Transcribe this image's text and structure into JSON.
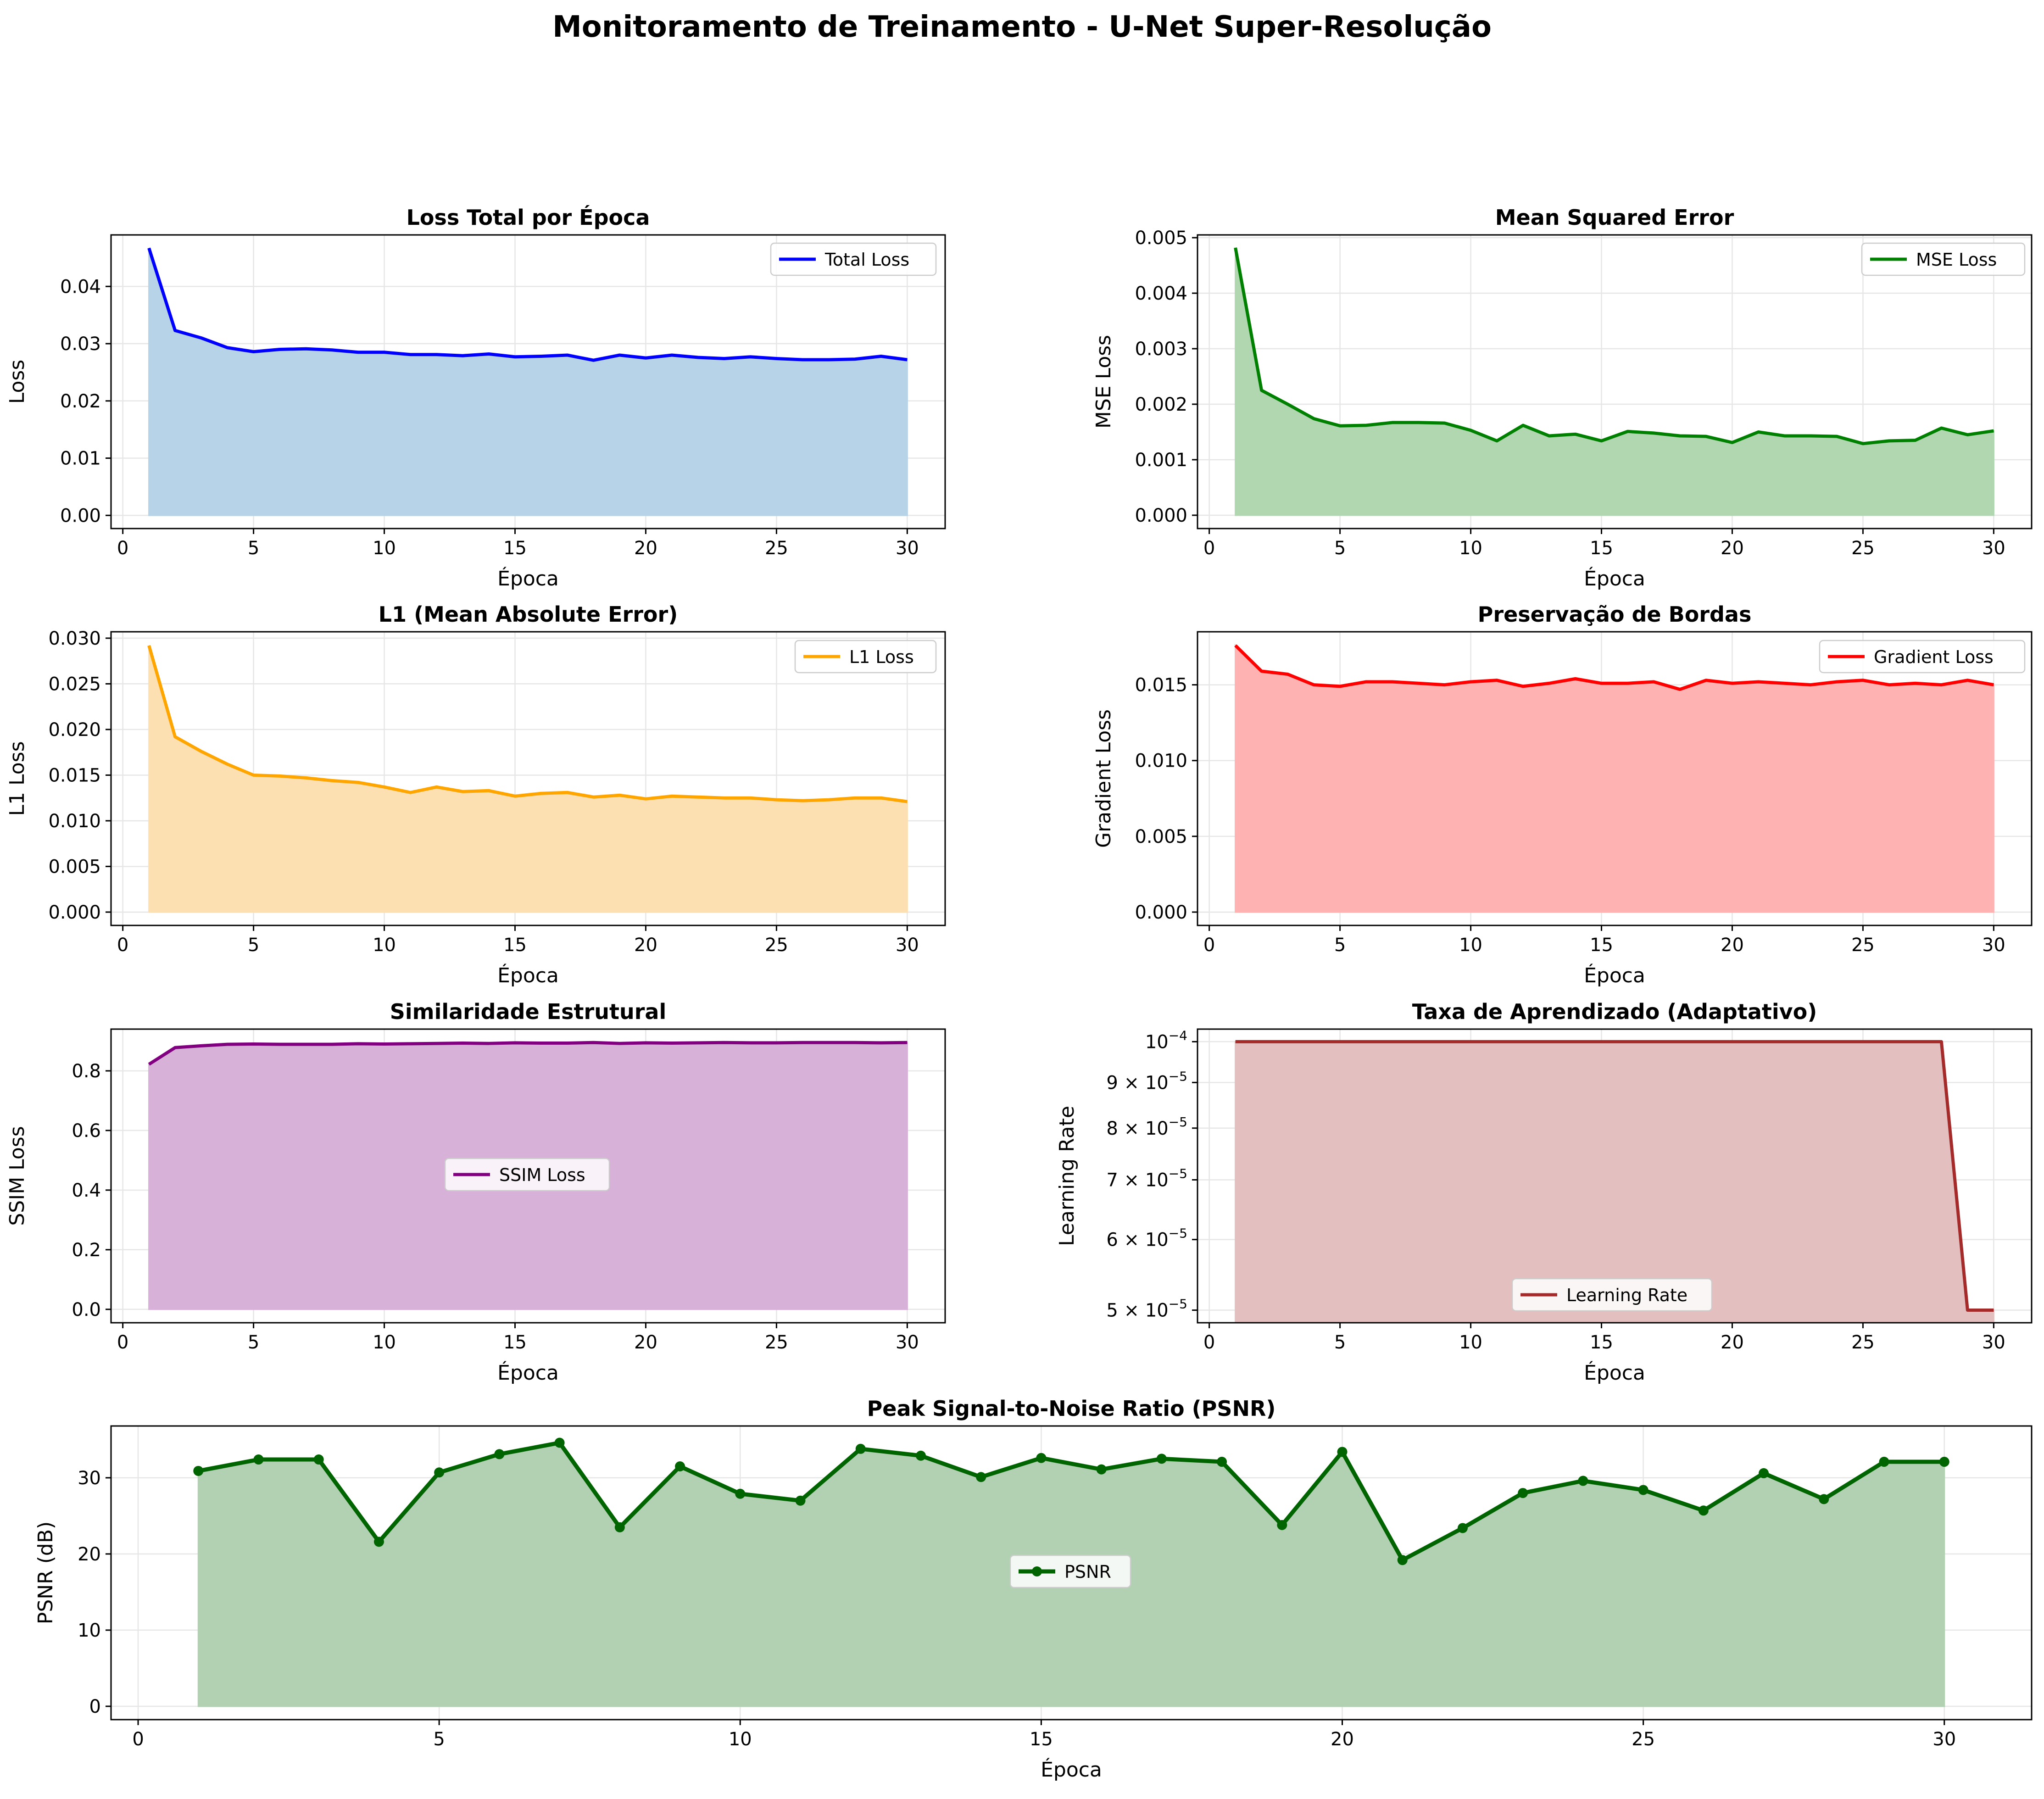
{
  "figure": {
    "title": "Monitoramento de Treinamento - U-Net Super-Resolução"
  },
  "chart_data": [
    {
      "id": "total",
      "type": "area",
      "title": "Loss Total por Época",
      "xlabel": "Época",
      "ylabel": "Loss",
      "xlim": [
        -0.45,
        31.45
      ],
      "ylim": [
        -0.0023,
        0.049
      ],
      "xticks": [
        0,
        5,
        10,
        15,
        20,
        25,
        30
      ],
      "yticks": [
        0.0,
        0.01,
        0.02,
        0.03,
        0.04
      ],
      "ytick_labels": [
        "0.00",
        "0.01",
        "0.02",
        "0.03",
        "0.04"
      ],
      "grid": true,
      "legend_position": "upper right",
      "color": "#0000ff",
      "fill_color": "#b7d3e7",
      "series": [
        {
          "name": "Total Loss",
          "x": [
            1,
            2,
            3,
            4,
            5,
            6,
            7,
            8,
            9,
            10,
            11,
            12,
            13,
            14,
            15,
            16,
            17,
            18,
            19,
            20,
            21,
            22,
            23,
            24,
            25,
            26,
            27,
            28,
            29,
            30
          ],
          "values": [
            0.0467,
            0.0323,
            0.031,
            0.0293,
            0.0286,
            0.029,
            0.0291,
            0.0289,
            0.0285,
            0.0285,
            0.0281,
            0.0281,
            0.0279,
            0.0282,
            0.0277,
            0.0278,
            0.028,
            0.0271,
            0.028,
            0.0275,
            0.028,
            0.0276,
            0.0274,
            0.0277,
            0.0274,
            0.0272,
            0.0272,
            0.0273,
            0.0278,
            0.0272
          ]
        }
      ]
    },
    {
      "id": "mse",
      "type": "area",
      "title": "Mean Squared Error",
      "xlabel": "Época",
      "ylabel": "MSE Loss",
      "xlim": [
        -0.45,
        31.45
      ],
      "ylim": [
        -0.00024,
        0.00505
      ],
      "xticks": [
        0,
        5,
        10,
        15,
        20,
        25,
        30
      ],
      "yticks": [
        0.0,
        0.001,
        0.002,
        0.003,
        0.004,
        0.005
      ],
      "ytick_labels": [
        "0.000",
        "0.001",
        "0.002",
        "0.003",
        "0.004",
        "0.005"
      ],
      "grid": true,
      "legend_position": "upper right",
      "color": "#008000",
      "fill_color": "#b1d7b1",
      "series": [
        {
          "name": "MSE Loss",
          "x": [
            1,
            2,
            3,
            4,
            5,
            6,
            7,
            8,
            9,
            10,
            11,
            12,
            13,
            14,
            15,
            16,
            17,
            18,
            19,
            20,
            21,
            22,
            23,
            24,
            25,
            26,
            27,
            28,
            29,
            30
          ],
          "values": [
            0.00482,
            0.00225,
            0.002,
            0.00174,
            0.00161,
            0.00162,
            0.00167,
            0.00167,
            0.00166,
            0.00153,
            0.00134,
            0.00162,
            0.00143,
            0.00146,
            0.00134,
            0.00151,
            0.00148,
            0.00143,
            0.00142,
            0.00131,
            0.0015,
            0.00143,
            0.00143,
            0.00142,
            0.00129,
            0.00134,
            0.00135,
            0.00157,
            0.00145,
            0.00152
          ]
        }
      ]
    },
    {
      "id": "l1",
      "type": "area",
      "title": "L1 (Mean Absolute Error)",
      "xlabel": "Época",
      "ylabel": "L1 Loss",
      "xlim": [
        -0.45,
        31.45
      ],
      "ylim": [
        -0.00146,
        0.0307
      ],
      "xticks": [
        0,
        5,
        10,
        15,
        20,
        25,
        30
      ],
      "yticks": [
        0.0,
        0.005,
        0.01,
        0.015,
        0.02,
        0.025,
        0.03
      ],
      "ytick_labels": [
        "0.000",
        "0.005",
        "0.010",
        "0.015",
        "0.020",
        "0.025",
        "0.030"
      ],
      "grid": true,
      "legend_position": "upper right",
      "color": "#ffa500",
      "fill_color": "#fde0b2",
      "series": [
        {
          "name": "L1 Loss",
          "x": [
            1,
            2,
            3,
            4,
            5,
            6,
            7,
            8,
            9,
            10,
            11,
            12,
            13,
            14,
            15,
            16,
            17,
            18,
            19,
            20,
            21,
            22,
            23,
            24,
            25,
            26,
            27,
            28,
            29,
            30
          ],
          "values": [
            0.0292,
            0.0192,
            0.0176,
            0.0162,
            0.015,
            0.0149,
            0.0147,
            0.0144,
            0.0142,
            0.0137,
            0.0131,
            0.0137,
            0.0132,
            0.0133,
            0.0127,
            0.013,
            0.0131,
            0.0126,
            0.0128,
            0.0124,
            0.0127,
            0.0126,
            0.0125,
            0.0125,
            0.0123,
            0.0122,
            0.0123,
            0.0125,
            0.0125,
            0.0121
          ]
        }
      ]
    },
    {
      "id": "grad",
      "type": "area",
      "title": "Preservação de Bordas",
      "xlabel": "Época",
      "ylabel": "Gradient Loss",
      "xlim": [
        -0.45,
        31.45
      ],
      "ylim": [
        -0.00088,
        0.0185
      ],
      "xticks": [
        0,
        5,
        10,
        15,
        20,
        25,
        30
      ],
      "yticks": [
        0.0,
        0.005,
        0.01,
        0.015
      ],
      "ytick_labels": [
        "0.000",
        "0.005",
        "0.010",
        "0.015"
      ],
      "grid": true,
      "legend_position": "upper right",
      "color": "#ff0000",
      "fill_color": "#ffb2b2",
      "series": [
        {
          "name": "Gradient Loss",
          "x": [
            1,
            2,
            3,
            4,
            5,
            6,
            7,
            8,
            9,
            10,
            11,
            12,
            13,
            14,
            15,
            16,
            17,
            18,
            19,
            20,
            21,
            22,
            23,
            24,
            25,
            26,
            27,
            28,
            29,
            30
          ],
          "values": [
            0.0176,
            0.0159,
            0.0157,
            0.015,
            0.0149,
            0.0152,
            0.0152,
            0.0151,
            0.015,
            0.0152,
            0.0153,
            0.0149,
            0.0151,
            0.0154,
            0.0151,
            0.0151,
            0.0152,
            0.0147,
            0.0153,
            0.0151,
            0.0152,
            0.0151,
            0.015,
            0.0152,
            0.0153,
            0.015,
            0.0151,
            0.015,
            0.0153,
            0.015
          ]
        }
      ]
    },
    {
      "id": "ssim",
      "type": "area",
      "title": "Similaridade Estrutural",
      "xlabel": "Época",
      "ylabel": "SSIM Loss",
      "xlim": [
        -0.45,
        31.45
      ],
      "ylim": [
        -0.045,
        0.94
      ],
      "xticks": [
        0,
        5,
        10,
        15,
        20,
        25,
        30
      ],
      "yticks": [
        0.0,
        0.2,
        0.4,
        0.6,
        0.8
      ],
      "ytick_labels": [
        "0.0",
        "0.2",
        "0.4",
        "0.6",
        "0.8"
      ],
      "grid": true,
      "legend_position": "center",
      "color": "#800080",
      "fill_color": "#d8b1d8",
      "series": [
        {
          "name": "SSIM Loss",
          "x": [
            1,
            2,
            3,
            4,
            5,
            6,
            7,
            8,
            9,
            10,
            11,
            12,
            13,
            14,
            15,
            16,
            17,
            18,
            19,
            20,
            21,
            22,
            23,
            24,
            25,
            26,
            27,
            28,
            29,
            30
          ],
          "values": [
            0.822,
            0.878,
            0.884,
            0.889,
            0.89,
            0.889,
            0.889,
            0.889,
            0.891,
            0.89,
            0.891,
            0.892,
            0.893,
            0.892,
            0.894,
            0.893,
            0.893,
            0.895,
            0.892,
            0.894,
            0.893,
            0.894,
            0.895,
            0.894,
            0.894,
            0.895,
            0.895,
            0.895,
            0.894,
            0.895
          ]
        }
      ]
    },
    {
      "id": "lr",
      "type": "area",
      "title": "Taxa de Aprendizado (Adaptativo)",
      "xlabel": "Época",
      "ylabel": "Learning Rate",
      "yscale": "log",
      "xlim": [
        -0.45,
        31.45
      ],
      "ylim": [
        4.84e-05,
        0.0001033
      ],
      "xticks": [
        0,
        5,
        10,
        15,
        20,
        25,
        30
      ],
      "yticks": [
        0.0001,
        9e-05,
        8e-05,
        7e-05,
        6e-05,
        5e-05
      ],
      "ytick_labels": [
        [
          "10",
          "−4"
        ],
        [
          "9 × 10",
          "−5"
        ],
        [
          "8 × 10",
          "−5"
        ],
        [
          "7 × 10",
          "−5"
        ],
        [
          "6 × 10",
          "−5"
        ],
        [
          "5 × 10",
          "−5"
        ]
      ],
      "grid": true,
      "legend_position": "lower center",
      "color": "#a52a2a",
      "fill_color": "#e4bfbf",
      "series": [
        {
          "name": "Learning Rate",
          "x": [
            1,
            2,
            3,
            4,
            5,
            6,
            7,
            8,
            9,
            10,
            11,
            12,
            13,
            14,
            15,
            16,
            17,
            18,
            19,
            20,
            21,
            22,
            23,
            24,
            25,
            26,
            27,
            28,
            29,
            30
          ],
          "values": [
            0.0001,
            0.0001,
            0.0001,
            0.0001,
            0.0001,
            0.0001,
            0.0001,
            0.0001,
            0.0001,
            0.0001,
            0.0001,
            0.0001,
            0.0001,
            0.0001,
            0.0001,
            0.0001,
            0.0001,
            0.0001,
            0.0001,
            0.0001,
            0.0001,
            0.0001,
            0.0001,
            0.0001,
            0.0001,
            0.0001,
            0.0001,
            0.0001,
            5e-05,
            5e-05
          ]
        }
      ]
    },
    {
      "id": "psnr",
      "type": "area",
      "title": "Peak Signal-to-Noise Ratio (PSNR)",
      "xlabel": "Época",
      "ylabel": "PSNR (dB)",
      "xlim": [
        -0.45,
        31.45
      ],
      "ylim": [
        -1.75,
        36.8
      ],
      "xticks": [
        0,
        5,
        10,
        15,
        20,
        25,
        30
      ],
      "yticks": [
        0,
        10,
        20,
        30
      ],
      "ytick_labels": [
        "0",
        "10",
        "20",
        "30"
      ],
      "grid": true,
      "legend_position": "center",
      "markers": true,
      "color": "#006400",
      "fill_color": "#b2d1b2",
      "series": [
        {
          "name": "PSNR",
          "x": [
            1,
            2,
            3,
            4,
            5,
            6,
            7,
            8,
            9,
            10,
            11,
            12,
            13,
            14,
            15,
            16,
            17,
            18,
            19,
            20,
            21,
            22,
            23,
            24,
            25,
            26,
            27,
            28,
            29,
            30
          ],
          "values": [
            30.9,
            32.4,
            32.4,
            21.6,
            30.7,
            33.1,
            34.6,
            23.5,
            31.5,
            27.9,
            27.0,
            33.8,
            32.9,
            30.1,
            32.6,
            31.1,
            32.5,
            32.1,
            23.8,
            33.4,
            19.2,
            23.4,
            28.0,
            29.6,
            28.4,
            25.7,
            30.6,
            27.2,
            32.1,
            32.1
          ]
        }
      ]
    }
  ]
}
